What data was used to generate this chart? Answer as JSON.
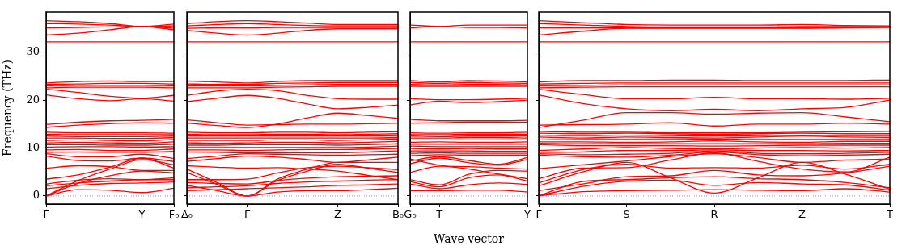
{
  "chart_data": [
    {
      "type": "line",
      "ylabel": "Frequency (THz)",
      "marker": "none",
      "categories": [
        "Γ",
        null,
        null,
        "Y",
        "F₀"
      ],
      "ylim": [
        -1.7,
        38.4
      ],
      "yticks": [
        0,
        10,
        20,
        30
      ],
      "ref_lines": [
        {
          "axis": "y",
          "value": 0,
          "color": "#6666ff",
          "line_style": "dotted"
        }
      ],
      "series": [
        {
          "color": "#ff0000",
          "values": [
            0,
            1.3,
            1.2,
            0.7,
            1.6
          ]
        },
        {
          "color": "#ff0000",
          "values": [
            0,
            2.6,
            4.2,
            5.2,
            4.8
          ]
        },
        {
          "color": "#ff0000",
          "values": [
            0,
            3.2,
            5.6,
            7.6,
            6.5
          ]
        },
        {
          "color": "#ff0000",
          "values": [
            1.5,
            2.2,
            2.6,
            2.7,
            2.9
          ]
        },
        {
          "color": "#ff0000",
          "values": [
            2.1,
            2.7,
            3.1,
            3.4,
            3.4
          ]
        },
        {
          "color": "#ff0000",
          "values": [
            2.5,
            3.3,
            3.6,
            3.4,
            3.8
          ]
        },
        {
          "color": "#ff0000",
          "values": [
            3.5,
            4.4,
            6.0,
            7.9,
            5.8
          ]
        },
        {
          "color": "#ff0000",
          "values": [
            5.8,
            6.3,
            6.1,
            5.3,
            5.3
          ]
        },
        {
          "color": "#ff0000",
          "values": [
            8.3,
            7.4,
            7.3,
            7.9,
            7.2
          ]
        },
        {
          "color": "#ff0000",
          "values": [
            8.8,
            8.2,
            8.2,
            8.7,
            7.8
          ]
        },
        {
          "color": "#ff0000",
          "values": [
            9.1,
            9.2,
            9.1,
            9.1,
            9.3
          ]
        },
        {
          "color": "#ff0000",
          "values": [
            9.6,
            9.7,
            9.5,
            9.5,
            9.8
          ]
        },
        {
          "color": "#ff0000",
          "values": [
            10.2,
            10.3,
            10.3,
            10.2,
            10.3
          ]
        },
        {
          "color": "#ff0000",
          "values": [
            10.7,
            10.7,
            10.6,
            10.6,
            10.8
          ]
        },
        {
          "color": "#ff0000",
          "values": [
            11.1,
            11.2,
            11.1,
            11.0,
            11.3
          ]
        },
        {
          "color": "#ff0000",
          "values": [
            11.6,
            11.7,
            11.6,
            11.5,
            11.8
          ]
        },
        {
          "color": "#ff0000",
          "values": [
            12.1,
            12.1,
            12.0,
            12.0,
            12.2
          ]
        },
        {
          "color": "#ff0000",
          "values": [
            12.5,
            12.4,
            12.4,
            12.4,
            12.5
          ]
        },
        {
          "color": "#ff0000",
          "values": [
            12.9,
            12.8,
            12.8,
            12.8,
            12.8
          ]
        },
        {
          "color": "#ff0000",
          "values": [
            13.3,
            13.2,
            13.2,
            13.2,
            13.1
          ]
        },
        {
          "color": "#ff0000",
          "values": [
            14.3,
            14.8,
            15.1,
            15.3,
            15.2
          ]
        },
        {
          "color": "#ff0000",
          "values": [
            14.9,
            15.4,
            15.7,
            15.8,
            16.0
          ]
        },
        {
          "color": "#ff0000",
          "values": [
            21.1,
            20.3,
            19.9,
            20.3,
            19.8
          ]
        },
        {
          "color": "#ff0000",
          "values": [
            22.3,
            21.6,
            20.8,
            20.4,
            21.0
          ]
        },
        {
          "color": "#ff0000",
          "values": [
            22.6,
            22.7,
            22.7,
            22.7,
            22.6
          ]
        },
        {
          "color": "#ff0000",
          "values": [
            23.0,
            23.1,
            23.1,
            23.1,
            23.0
          ]
        },
        {
          "color": "#ff0000",
          "values": [
            23.3,
            23.4,
            23.5,
            23.5,
            23.4
          ]
        },
        {
          "color": "#ff0000",
          "values": [
            23.6,
            23.9,
            24.0,
            23.9,
            23.9
          ]
        },
        {
          "color": "#ff0000",
          "values": [
            32.2,
            32.2,
            32.2,
            32.2,
            32.2
          ]
        },
        {
          "color": "#ff0000",
          "values": [
            33.6,
            34.0,
            34.7,
            35.4,
            34.7
          ]
        },
        {
          "color": "#ff0000",
          "values": [
            35.1,
            35.2,
            35.3,
            35.4,
            35.0
          ]
        },
        {
          "color": "#ff0000",
          "values": [
            36.0,
            35.9,
            35.7,
            35.4,
            35.5
          ]
        },
        {
          "color": "#ff0000",
          "values": [
            36.6,
            36.4,
            36.0,
            35.4,
            35.9
          ]
        }
      ]
    },
    {
      "type": "line",
      "marker": "none",
      "tick_labels": "x",
      "categories": [
        "Δ₀",
        null,
        "Γ",
        null,
        null,
        "Z",
        null,
        "B₀"
      ],
      "ylim": [
        -1.7,
        38.4
      ],
      "yticks": [
        0,
        10,
        20,
        30
      ],
      "ref_lines": [
        {
          "axis": "y",
          "value": 0,
          "color": "#6666ff",
          "line_style": "dotted"
        }
      ],
      "series": [
        {
          "color": "#ff0000",
          "values": [
            2.2,
            1.1,
            0,
            0.8,
            1.1,
            1.1,
            1.3,
            1.6
          ]
        },
        {
          "color": "#ff0000",
          "values": [
            4.9,
            2.4,
            0,
            3.2,
            5.2,
            6.6,
            5.8,
            4.9
          ]
        },
        {
          "color": "#ff0000",
          "values": [
            5.6,
            2.8,
            0,
            3.5,
            5.6,
            7.0,
            7.0,
            7.0
          ]
        },
        {
          "color": "#ff0000",
          "values": [
            1.1,
            1.3,
            1.5,
            1.7,
            1.9,
            2.2,
            2.3,
            2.5
          ]
        },
        {
          "color": "#ff0000",
          "values": [
            1.7,
            1.9,
            2.1,
            2.6,
            2.9,
            3.1,
            3.3,
            3.4
          ]
        },
        {
          "color": "#ff0000",
          "values": [
            2.8,
            2.6,
            2.5,
            3.2,
            3.7,
            4.0,
            4.1,
            4.2
          ]
        },
        {
          "color": "#ff0000",
          "values": [
            3.4,
            3.4,
            3.5,
            4.8,
            5.9,
            6.2,
            5.9,
            5.5
          ]
        },
        {
          "color": "#ff0000",
          "values": [
            6.3,
            6.0,
            5.8,
            5.9,
            5.6,
            5.2,
            4.3,
            3.4
          ]
        },
        {
          "color": "#ff0000",
          "values": [
            7.2,
            7.8,
            8.3,
            8.1,
            7.6,
            7.0,
            7.5,
            8.1
          ]
        },
        {
          "color": "#ff0000",
          "values": [
            7.8,
            8.3,
            8.8,
            8.7,
            8.6,
            8.5,
            8.6,
            8.7
          ]
        },
        {
          "color": "#ff0000",
          "values": [
            9.2,
            9.1,
            9.0,
            9.0,
            9.0,
            9.0,
            9.2,
            9.4
          ]
        },
        {
          "color": "#ff0000",
          "values": [
            9.6,
            9.6,
            9.5,
            9.6,
            9.7,
            9.7,
            9.8,
            9.9
          ]
        },
        {
          "color": "#ff0000",
          "values": [
            10.1,
            10.1,
            10.1,
            10.1,
            10.1,
            10.1,
            10.2,
            10.4
          ]
        },
        {
          "color": "#ff0000",
          "values": [
            10.6,
            10.6,
            10.7,
            10.7,
            10.7,
            10.6,
            10.7,
            10.9
          ]
        },
        {
          "color": "#ff0000",
          "values": [
            11.1,
            11.0,
            11.1,
            11.2,
            11.2,
            11.1,
            11.2,
            11.4
          ]
        },
        {
          "color": "#ff0000",
          "values": [
            11.6,
            11.6,
            11.6,
            11.7,
            11.7,
            11.6,
            11.7,
            11.9
          ]
        },
        {
          "color": "#ff0000",
          "values": [
            12.1,
            12.1,
            12.1,
            12.1,
            12.1,
            12.1,
            12.1,
            12.2
          ]
        },
        {
          "color": "#ff0000",
          "values": [
            12.5,
            12.5,
            12.5,
            12.5,
            12.5,
            12.5,
            12.5,
            12.6
          ]
        },
        {
          "color": "#ff0000",
          "values": [
            12.9,
            12.8,
            12.8,
            12.9,
            12.9,
            12.8,
            12.9,
            13.0
          ]
        },
        {
          "color": "#ff0000",
          "values": [
            13.3,
            13.2,
            13.2,
            13.3,
            13.3,
            13.2,
            13.3,
            13.4
          ]
        },
        {
          "color": "#ff0000",
          "values": [
            15.2,
            14.7,
            14.3,
            15.0,
            16.3,
            17.3,
            16.8,
            16.2
          ]
        },
        {
          "color": "#ff0000",
          "values": [
            15.9,
            15.3,
            14.8,
            14.9,
            15.0,
            15.0,
            15.1,
            15.2
          ]
        },
        {
          "color": "#ff0000",
          "values": [
            19.7,
            20.4,
            21.0,
            20.4,
            19.2,
            18.2,
            18.5,
            19.0
          ]
        },
        {
          "color": "#ff0000",
          "values": [
            21.0,
            21.9,
            22.3,
            22.0,
            21.0,
            20.3,
            20.2,
            20.2
          ]
        },
        {
          "color": "#ff0000",
          "values": [
            22.6,
            22.6,
            22.6,
            22.7,
            22.8,
            22.9,
            22.9,
            22.9
          ]
        },
        {
          "color": "#ff0000",
          "values": [
            23.0,
            23.0,
            23.0,
            23.1,
            23.2,
            23.3,
            23.3,
            23.3
          ]
        },
        {
          "color": "#ff0000",
          "values": [
            23.4,
            23.3,
            23.3,
            23.5,
            23.6,
            23.7,
            23.7,
            23.7
          ]
        },
        {
          "color": "#ff0000",
          "values": [
            24.0,
            23.8,
            23.6,
            23.9,
            24.1,
            24.1,
            24.1,
            24.1
          ]
        },
        {
          "color": "#ff0000",
          "values": [
            32.2,
            32.2,
            32.2,
            32.2,
            32.2,
            32.2,
            32.2,
            32.2
          ]
        },
        {
          "color": "#ff0000",
          "values": [
            34.6,
            34.0,
            33.6,
            34.0,
            34.6,
            34.9,
            34.9,
            34.9
          ]
        },
        {
          "color": "#ff0000",
          "values": [
            35.0,
            35.1,
            35.1,
            35.2,
            35.2,
            35.2,
            35.2,
            35.2
          ]
        },
        {
          "color": "#ff0000",
          "values": [
            35.5,
            35.8,
            36.0,
            35.8,
            35.6,
            35.5,
            35.5,
            35.5
          ]
        },
        {
          "color": "#ff0000",
          "values": [
            36.0,
            36.4,
            36.6,
            36.4,
            36.1,
            35.8,
            35.8,
            35.8
          ]
        }
      ]
    },
    {
      "type": "line",
      "xlabel": "Wave vector",
      "marker": "none",
      "tick_labels": "x",
      "categories": [
        "G₀",
        "T",
        null,
        null,
        "Y"
      ],
      "ylim": [
        -1.7,
        38.4
      ],
      "yticks": [
        0,
        10,
        20,
        30
      ],
      "ref_lines": [
        {
          "axis": "y",
          "value": 0,
          "color": "#6666ff",
          "line_style": "dotted"
        }
      ],
      "series": [
        {
          "color": "#ff0000",
          "values": [
            1.1,
            1.1,
            1.2,
            1.2,
            0.8
          ]
        },
        {
          "color": "#ff0000",
          "values": [
            2.5,
            1.5,
            2.3,
            2.7,
            2.4
          ]
        },
        {
          "color": "#ff0000",
          "values": [
            3.0,
            1.9,
            3.8,
            4.4,
            3.1
          ]
        },
        {
          "color": "#ff0000",
          "values": [
            3.4,
            2.3,
            4.5,
            5.3,
            5.2
          ]
        },
        {
          "color": "#ff0000",
          "values": [
            4.9,
            6.2,
            6.1,
            5.8,
            5.6
          ]
        },
        {
          "color": "#ff0000",
          "values": [
            6.7,
            7.9,
            6.9,
            6.4,
            7.6
          ]
        },
        {
          "color": "#ff0000",
          "values": [
            7.3,
            8.2,
            7.4,
            6.6,
            8.0
          ]
        },
        {
          "color": "#ff0000",
          "values": [
            7.7,
            6.4,
            5.6,
            4.6,
            3.6
          ]
        },
        {
          "color": "#ff0000",
          "values": [
            8.4,
            8.6,
            8.5,
            8.5,
            8.5
          ]
        },
        {
          "color": "#ff0000",
          "values": [
            8.9,
            9.0,
            8.9,
            8.9,
            8.9
          ]
        },
        {
          "color": "#ff0000",
          "values": [
            9.4,
            9.4,
            9.4,
            9.3,
            9.3
          ]
        },
        {
          "color": "#ff0000",
          "values": [
            9.9,
            9.8,
            9.9,
            9.8,
            9.8
          ]
        },
        {
          "color": "#ff0000",
          "values": [
            10.4,
            10.3,
            10.3,
            10.3,
            10.3
          ]
        },
        {
          "color": "#ff0000",
          "values": [
            10.8,
            10.8,
            10.8,
            10.8,
            10.8
          ]
        },
        {
          "color": "#ff0000",
          "values": [
            11.2,
            11.3,
            11.2,
            11.2,
            11.3
          ]
        },
        {
          "color": "#ff0000",
          "values": [
            11.7,
            11.7,
            11.7,
            11.7,
            11.7
          ]
        },
        {
          "color": "#ff0000",
          "values": [
            12.1,
            12.1,
            12.2,
            12.2,
            12.1
          ]
        },
        {
          "color": "#ff0000",
          "values": [
            12.5,
            12.4,
            12.5,
            12.5,
            12.5
          ]
        },
        {
          "color": "#ff0000",
          "values": [
            12.8,
            12.8,
            12.9,
            12.9,
            12.9
          ]
        },
        {
          "color": "#ff0000",
          "values": [
            13.2,
            13.1,
            13.2,
            13.2,
            13.3
          ]
        },
        {
          "color": "#ff0000",
          "values": [
            15.2,
            15.3,
            15.4,
            15.4,
            15.4
          ]
        },
        {
          "color": "#ff0000",
          "values": [
            16.0,
            15.7,
            15.7,
            15.7,
            15.8
          ]
        },
        {
          "color": "#ff0000",
          "values": [
            19.0,
            19.8,
            19.5,
            19.7,
            20.0
          ]
        },
        {
          "color": "#ff0000",
          "values": [
            20.3,
            20.1,
            20.1,
            20.2,
            20.4
          ]
        },
        {
          "color": "#ff0000",
          "values": [
            22.9,
            22.9,
            22.9,
            22.9,
            22.9
          ]
        },
        {
          "color": "#ff0000",
          "values": [
            23.3,
            23.2,
            23.3,
            23.3,
            23.2
          ]
        },
        {
          "color": "#ff0000",
          "values": [
            23.7,
            23.5,
            23.7,
            23.6,
            23.5
          ]
        },
        {
          "color": "#ff0000",
          "values": [
            24.1,
            23.8,
            24.1,
            24.0,
            23.8
          ]
        },
        {
          "color": "#ff0000",
          "values": [
            32.2,
            32.2,
            32.2,
            32.2,
            32.2
          ]
        },
        {
          "color": "#ff0000",
          "values": [
            35.1,
            35.4,
            35.2,
            35.2,
            35.1
          ]
        },
        {
          "color": "#ff0000",
          "values": [
            35.7,
            35.4,
            35.7,
            35.7,
            35.7
          ]
        }
      ]
    },
    {
      "type": "line",
      "marker": "none",
      "tick_labels": "x",
      "categories": [
        "Γ",
        null,
        "S",
        null,
        "R",
        null,
        "Z",
        null,
        "T"
      ],
      "ylim": [
        -1.7,
        38.4
      ],
      "yticks": [
        0,
        10,
        20,
        30
      ],
      "ref_lines": [
        {
          "axis": "y",
          "value": 0,
          "color": "#6666ff",
          "line_style": "dotted"
        }
      ],
      "series": [
        {
          "color": "#ff0000",
          "values": [
            0,
            0.9,
            1.1,
            1.2,
            1.3,
            1.2,
            1.1,
            1.5,
            0.8
          ]
        },
        {
          "color": "#ff0000",
          "values": [
            0,
            2.0,
            3.1,
            3.3,
            2.2,
            2.8,
            2.5,
            2.3,
            1.2
          ]
        },
        {
          "color": "#ff0000",
          "values": [
            0,
            3.0,
            3.4,
            3.8,
            4.0,
            3.6,
            3.4,
            2.8,
            1.7
          ]
        },
        {
          "color": "#ff0000",
          "values": [
            1.1,
            2.5,
            4.0,
            4.2,
            5.3,
            4.4,
            4.2,
            4.8,
            6.2
          ]
        },
        {
          "color": "#ff0000",
          "values": [
            2.1,
            5.0,
            7.0,
            3.8,
            0.6,
            3.8,
            7.0,
            4.5,
            1.4
          ]
        },
        {
          "color": "#ff0000",
          "values": [
            2.7,
            5.5,
            6.6,
            5.8,
            5.9,
            5.8,
            6.4,
            5.6,
            6.6
          ]
        },
        {
          "color": "#ff0000",
          "values": [
            3.6,
            5.8,
            5.9,
            7.5,
            9.0,
            7.2,
            5.6,
            5.0,
            8.1
          ]
        },
        {
          "color": "#ff0000",
          "values": [
            5.7,
            6.5,
            7.3,
            8.2,
            8.8,
            8.0,
            7.0,
            7.5,
            7.7
          ]
        },
        {
          "color": "#ff0000",
          "values": [
            8.5,
            8.2,
            8.1,
            8.5,
            9.2,
            8.6,
            8.4,
            8.5,
            8.7
          ]
        },
        {
          "color": "#ff0000",
          "values": [
            8.8,
            8.6,
            8.7,
            8.9,
            9.4,
            8.9,
            8.8,
            8.9,
            9.1
          ]
        },
        {
          "color": "#ff0000",
          "values": [
            9.1,
            9.2,
            9.5,
            9.5,
            9.6,
            9.5,
            9.5,
            9.4,
            9.5
          ]
        },
        {
          "color": "#ff0000",
          "values": [
            9.5,
            9.8,
            10.1,
            9.9,
            9.8,
            10.0,
            10.1,
            10.0,
            10.1
          ]
        },
        {
          "color": "#ff0000",
          "values": [
            10.7,
            10.5,
            10.5,
            10.5,
            10.4,
            10.5,
            10.6,
            10.6,
            10.6
          ]
        },
        {
          "color": "#ff0000",
          "values": [
            11.0,
            10.9,
            10.9,
            10.9,
            10.9,
            10.9,
            10.9,
            11.0,
            11.0
          ]
        },
        {
          "color": "#ff0000",
          "values": [
            11.3,
            11.3,
            11.2,
            11.3,
            11.5,
            11.3,
            11.2,
            11.4,
            11.4
          ]
        },
        {
          "color": "#ff0000",
          "values": [
            11.7,
            11.8,
            11.8,
            11.8,
            11.9,
            11.8,
            11.8,
            11.8,
            11.8
          ]
        },
        {
          "color": "#ff0000",
          "values": [
            12.3,
            12.1,
            12.3,
            12.2,
            12.1,
            12.3,
            12.5,
            12.3,
            12.2
          ]
        },
        {
          "color": "#ff0000",
          "values": [
            12.7,
            12.6,
            12.7,
            12.6,
            12.5,
            12.6,
            12.7,
            12.6,
            12.6
          ]
        },
        {
          "color": "#ff0000",
          "values": [
            13.1,
            13.0,
            13.1,
            13.0,
            12.9,
            13.0,
            13.1,
            13.0,
            13.0
          ]
        },
        {
          "color": "#ff0000",
          "values": [
            13.5,
            13.3,
            13.3,
            13.2,
            13.2,
            13.2,
            13.3,
            13.4,
            13.5
          ]
        },
        {
          "color": "#ff0000",
          "values": [
            14.3,
            15.8,
            17.4,
            17.4,
            17.1,
            17.3,
            17.4,
            16.5,
            15.5
          ]
        },
        {
          "color": "#ff0000",
          "values": [
            14.8,
            14.9,
            15.0,
            15.3,
            14.6,
            15.0,
            15.0,
            15.2,
            15.0
          ]
        },
        {
          "color": "#ff0000",
          "values": [
            21.1,
            19.3,
            18.2,
            17.8,
            18.1,
            17.8,
            18.2,
            18.5,
            20.0
          ]
        },
        {
          "color": "#ff0000",
          "values": [
            22.3,
            21.2,
            20.3,
            20.3,
            20.6,
            20.3,
            20.3,
            20.2,
            20.4
          ]
        },
        {
          "color": "#ff0000",
          "values": [
            22.6,
            22.7,
            22.8,
            22.8,
            22.8,
            22.8,
            22.8,
            22.8,
            22.8
          ]
        },
        {
          "color": "#ff0000",
          "values": [
            23.0,
            23.1,
            23.2,
            23.2,
            23.2,
            23.2,
            23.2,
            23.2,
            23.2
          ]
        },
        {
          "color": "#ff0000",
          "values": [
            23.4,
            23.5,
            23.6,
            23.6,
            23.6,
            23.6,
            23.6,
            23.6,
            23.6
          ]
        },
        {
          "color": "#ff0000",
          "values": [
            23.8,
            24.1,
            24.1,
            24.2,
            24.2,
            24.1,
            24.1,
            24.1,
            24.2
          ]
        },
        {
          "color": "#ff0000",
          "values": [
            32.2,
            32.2,
            32.2,
            32.2,
            32.2,
            32.2,
            32.2,
            32.2,
            32.2
          ]
        },
        {
          "color": "#ff0000",
          "values": [
            33.6,
            34.4,
            35.0,
            35.0,
            35.0,
            35.0,
            35.0,
            35.1,
            35.2
          ]
        },
        {
          "color": "#ff0000",
          "values": [
            35.1,
            35.1,
            35.1,
            35.1,
            35.1,
            35.1,
            35.1,
            35.2,
            35.3
          ]
        },
        {
          "color": "#ff0000",
          "values": [
            36.0,
            35.7,
            35.4,
            35.3,
            35.3,
            35.3,
            35.4,
            35.4,
            35.4
          ]
        },
        {
          "color": "#ff0000",
          "values": [
            36.6,
            36.2,
            35.8,
            35.7,
            35.7,
            35.7,
            35.8,
            35.6,
            35.5
          ]
        }
      ]
    }
  ]
}
